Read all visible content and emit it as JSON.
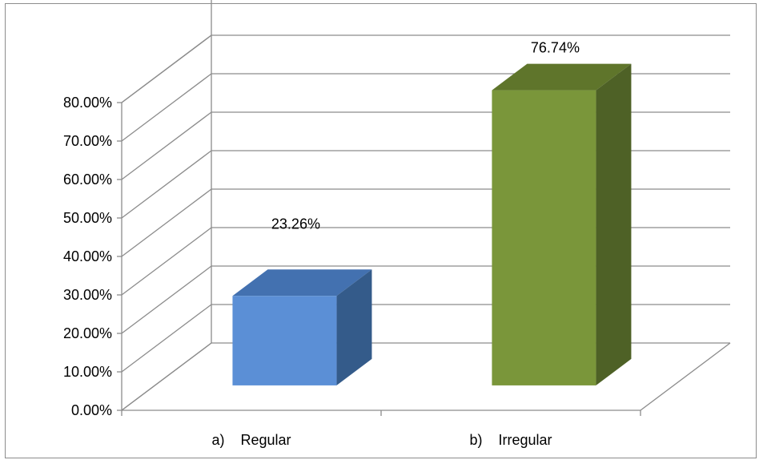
{
  "chart_data": {
    "type": "bar",
    "style": "3d-column",
    "categories": [
      "a)    Regular",
      "b)    Irregular"
    ],
    "values": [
      23.26,
      76.74
    ],
    "data_labels": [
      "23.26%",
      "76.74%"
    ],
    "colors": [
      "#5b8fd6",
      "#7a963a"
    ],
    "side_colors": [
      "#345b8a",
      "#4e6126"
    ],
    "top_colors": [
      "#4371b0",
      "#5f752b"
    ],
    "y_ticks": [
      "0.00%",
      "10.00%",
      "20.00%",
      "30.00%",
      "40.00%",
      "50.00%",
      "60.00%",
      "70.00%",
      "80.00%"
    ],
    "ylim": [
      0,
      80
    ],
    "grid": true,
    "legend": "none"
  }
}
